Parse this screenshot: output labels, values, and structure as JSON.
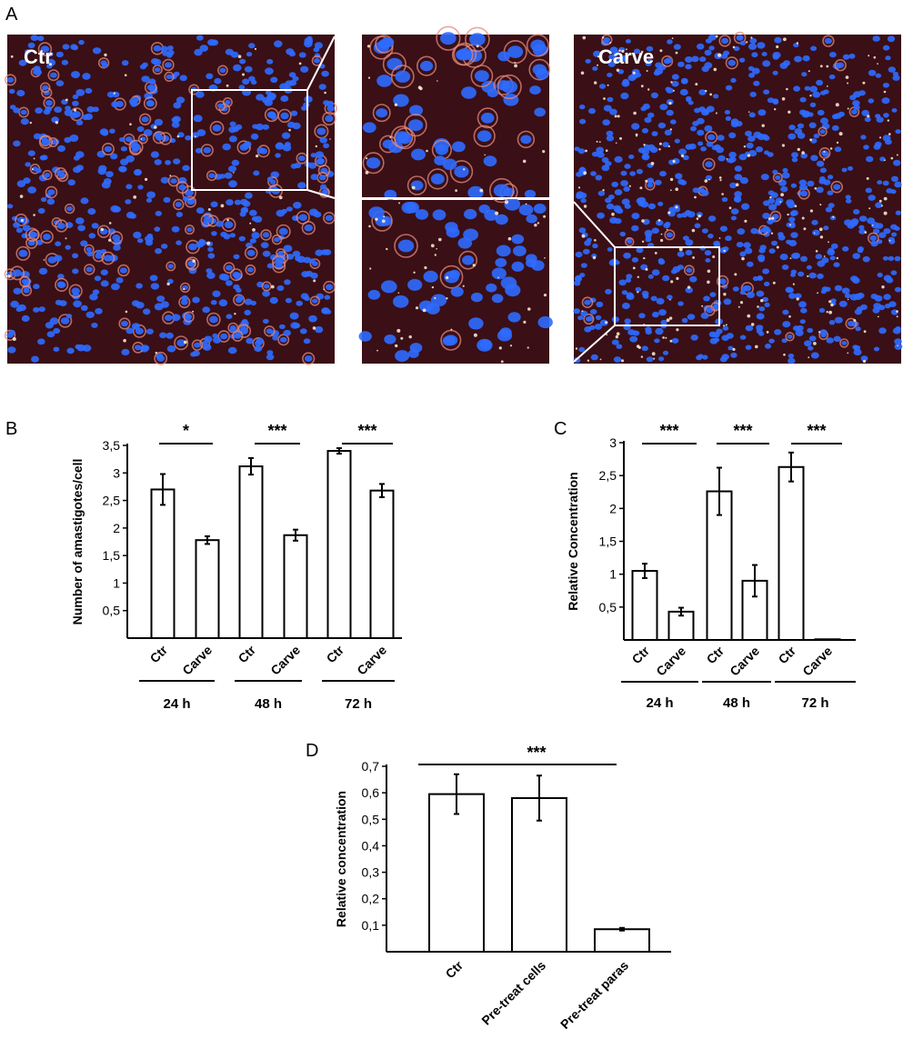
{
  "panel_letters": {
    "a": "A",
    "b": "B",
    "c": "C",
    "d": "D"
  },
  "micrographs": {
    "left_label": "Ctr",
    "right_label": "Carve",
    "colors": {
      "background": "#3a0f16",
      "nucleus": "#2f6bff",
      "parasite": "#e58a7a",
      "highlight": "#fff1d6"
    }
  },
  "chart_data": [
    {
      "panel": "B",
      "type": "bar",
      "ylabel": "Number of amastigotes/cell",
      "ylim": [
        0,
        3.5
      ],
      "yticks": [
        "0,5",
        "1",
        "1,5",
        "2",
        "2,5",
        "3",
        "3,5"
      ],
      "ytick_values": [
        0.5,
        1,
        1.5,
        2,
        2.5,
        3,
        3.5
      ],
      "categories": [
        "Ctr",
        "Carve",
        "Ctr",
        "Carve",
        "Ctr",
        "Carve"
      ],
      "values": [
        2.7,
        1.78,
        3.12,
        1.87,
        3.4,
        2.68
      ],
      "errors": [
        0.28,
        0.07,
        0.15,
        0.1,
        0.05,
        0.12
      ],
      "groups": [
        {
          "label": "24 h",
          "significance": "*"
        },
        {
          "label": "48 h",
          "significance": "***"
        },
        {
          "label": "72 h",
          "significance": "***"
        }
      ]
    },
    {
      "panel": "C",
      "type": "bar",
      "ylabel": "Relative Concentration",
      "ylim": [
        0,
        3
      ],
      "yticks": [
        "0,5",
        "1",
        "1,5",
        "2",
        "2,5",
        "3"
      ],
      "ytick_values": [
        0.5,
        1,
        1.5,
        2,
        2.5,
        3
      ],
      "categories": [
        "Ctr",
        "Carve",
        "Ctr",
        "Carve",
        "Ctr",
        "Carve"
      ],
      "values": [
        1.05,
        0.43,
        2.26,
        0.9,
        2.63,
        0.01
      ],
      "errors": [
        0.11,
        0.06,
        0.36,
        0.24,
        0.22,
        0.0
      ],
      "groups": [
        {
          "label": "24 h",
          "significance": "***"
        },
        {
          "label": "48 h",
          "significance": "***"
        },
        {
          "label": "72 h",
          "significance": "***"
        }
      ]
    },
    {
      "panel": "D",
      "type": "bar",
      "ylabel": "Relative concentration",
      "ylim": [
        0,
        0.7
      ],
      "yticks": [
        "0,1",
        "0,2",
        "0,3",
        "0,4",
        "0,5",
        "0,6",
        "0,7"
      ],
      "ytick_values": [
        0.1,
        0.2,
        0.3,
        0.4,
        0.5,
        0.6,
        0.7
      ],
      "categories": [
        "Ctr",
        "Pre-treat cells",
        "Pre-treat paras"
      ],
      "values": [
        0.595,
        0.58,
        0.085
      ],
      "errors": [
        0.075,
        0.085,
        0.005
      ],
      "significance": "***"
    }
  ]
}
